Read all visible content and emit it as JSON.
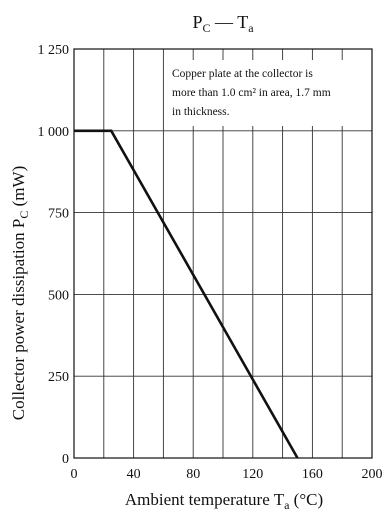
{
  "chart_data": {
    "type": "line",
    "title": {
      "main": "P",
      "main_sub": "C",
      "sep": " — ",
      "second": "T",
      "second_sub": "a"
    },
    "xlabel": {
      "text": "Ambient temperature  T",
      "sub": "a",
      "unit": " (°C)"
    },
    "ylabel": {
      "text": "Collector power dissipation  P",
      "sub": "C",
      "unit": " (mW)"
    },
    "xlim": [
      0,
      200
    ],
    "ylim": [
      0,
      1250
    ],
    "xticks": [
      "0",
      "40",
      "80",
      "120",
      "160",
      "200"
    ],
    "yticks": [
      "0",
      "250",
      "500",
      "750",
      "1 000",
      "1 250"
    ],
    "xtick_values": [
      0,
      40,
      80,
      120,
      160,
      200
    ],
    "ytick_values": [
      0,
      250,
      500,
      750,
      1000,
      1250
    ],
    "x_grid_values": [
      0,
      20,
      40,
      60,
      80,
      100,
      120,
      140,
      160,
      180,
      200
    ],
    "y_grid_values": [
      0,
      250,
      500,
      750,
      1000,
      1250
    ],
    "grid": true,
    "series": [
      {
        "x": [
          0,
          25,
          150
        ],
        "y": [
          1000,
          1000,
          0
        ]
      }
    ],
    "annotation": [
      "Copper plate at the collector is",
      "more than 1.0 cm² in area, 1.7 mm",
      "in thickness."
    ]
  }
}
